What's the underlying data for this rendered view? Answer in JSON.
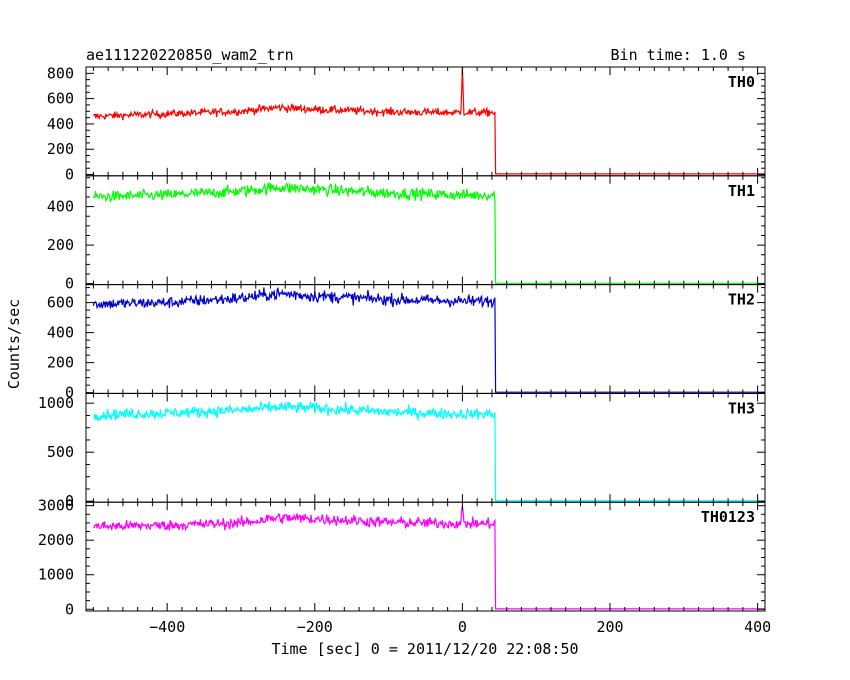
{
  "chart_data": {
    "type": "line",
    "title": "ae111220220850_wam2_trn",
    "subtitle": "Bin time: 1.0 s",
    "xlabel": "Time [sec] 0 = 2011/12/20 22:08:50",
    "ylabel": "Counts/sec",
    "xlim": [
      -510,
      410
    ],
    "x_ticks": [
      -400,
      -200,
      0,
      200,
      400
    ],
    "x_tick_labels": [
      "−400",
      "−200",
      "0",
      "200",
      "400"
    ],
    "grid": false,
    "panels": [
      {
        "name": "TH0",
        "color": "#ff0000",
        "ylim": [
          -10,
          850
        ],
        "yticks": [
          0,
          200,
          400,
          600,
          800
        ],
        "series": [
          {
            "x": [
              -500,
              -400,
              -300,
              -250,
              -200,
              -100,
              -20,
              -2,
              0,
              2,
              20,
              44,
              45,
              410
            ],
            "y": [
              460,
              480,
              500,
              530,
              515,
              495,
              490,
              490,
              850,
              495,
              490,
              490,
              5,
              5
            ]
          }
        ]
      },
      {
        "name": "TH1",
        "color": "#00ff00",
        "ylim": [
          -5,
          560
        ],
        "yticks": [
          0,
          200,
          400
        ],
        "series": [
          {
            "x": [
              -500,
              -400,
              -300,
              -250,
              -200,
              -100,
              0,
              44,
              45,
              410
            ],
            "y": [
              450,
              460,
              480,
              500,
              490,
              470,
              460,
              460,
              2,
              2
            ]
          }
        ]
      },
      {
        "name": "TH2",
        "color": "#0000cc",
        "ylim": [
          -5,
          720
        ],
        "yticks": [
          0,
          200,
          400,
          600
        ],
        "series": [
          {
            "x": [
              -500,
              -400,
              -300,
              -250,
              -200,
              -100,
              0,
              44,
              45,
              410
            ],
            "y": [
              590,
              600,
              630,
              660,
              645,
              620,
              610,
              610,
              3,
              3
            ]
          }
        ]
      },
      {
        "name": "TH3",
        "color": "#00ffff",
        "ylim": [
          -10,
          1100
        ],
        "yticks": [
          0,
          500,
          1000
        ],
        "series": [
          {
            "x": [
              -500,
              -400,
              -300,
              -250,
              -200,
              -100,
              0,
              44,
              45,
              410
            ],
            "y": [
              880,
              900,
              930,
              960,
              950,
              910,
              890,
              890,
              5,
              5
            ]
          }
        ]
      },
      {
        "name": "TH0123",
        "color": "#ff00ff",
        "ylim": [
          -50,
          3100
        ],
        "yticks": [
          0,
          1000,
          2000,
          3000
        ],
        "series": [
          {
            "x": [
              -500,
              -400,
              -300,
              -250,
              -200,
              -100,
              -2,
              0,
              2,
              44,
              45,
              410
            ],
            "y": [
              2400,
              2430,
              2500,
              2650,
              2620,
              2520,
              2480,
              3000,
              2480,
              2480,
              10,
              10
            ]
          }
        ]
      }
    ]
  }
}
